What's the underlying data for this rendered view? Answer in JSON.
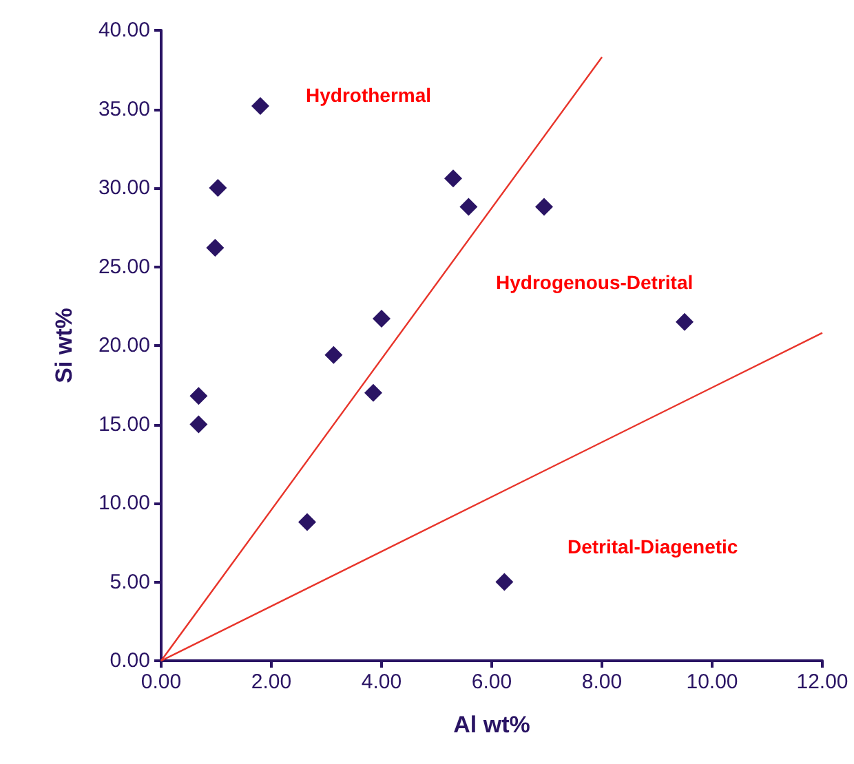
{
  "chart_data": {
    "type": "scatter",
    "xlabel": "Al wt%",
    "ylabel": "Si wt%",
    "grid": false,
    "xlim": [
      0,
      12
    ],
    "ylim": [
      0,
      40
    ],
    "xticks": [
      {
        "value": 0,
        "label": "0.00"
      },
      {
        "value": 2,
        "label": "2.00"
      },
      {
        "value": 4,
        "label": "4.00"
      },
      {
        "value": 6,
        "label": "6.00"
      },
      {
        "value": 8,
        "label": "8.00"
      },
      {
        "value": 10,
        "label": "10.00"
      },
      {
        "value": 12,
        "label": "12.00"
      }
    ],
    "yticks": [
      {
        "value": 0,
        "label": "0.00"
      },
      {
        "value": 5,
        "label": "5.00"
      },
      {
        "value": 10,
        "label": "10.00"
      },
      {
        "value": 15,
        "label": "15.00"
      },
      {
        "value": 20,
        "label": "20.00"
      },
      {
        "value": 25,
        "label": "25.00"
      },
      {
        "value": 30,
        "label": "30.00"
      },
      {
        "value": 35,
        "label": "35.00"
      },
      {
        "value": 40,
        "label": "40.00"
      }
    ],
    "annotations": [
      "Hydrothermal",
      "Hydrogenous-Detrital",
      "Detrital-Diagenetic"
    ],
    "series": [
      {
        "marker": "diamond",
        "color": "#2a1464",
        "x": [
          1.8,
          1.03,
          0.98,
          0.68,
          0.68,
          5.3,
          5.58,
          6.95,
          4.0,
          3.13,
          3.85,
          2.65,
          6.23,
          9.5
        ],
        "values": [
          35.2,
          30.0,
          26.2,
          16.8,
          15.0,
          30.6,
          28.8,
          28.8,
          21.7,
          19.4,
          17.0,
          8.8,
          5.0,
          21.5
        ]
      },
      {
        "type": "line",
        "color": "#e8342a",
        "x": [
          0,
          8
        ],
        "values": [
          0,
          38.3
        ]
      },
      {
        "type": "line",
        "color": "#e8342a",
        "x": [
          0,
          12
        ],
        "values": [
          0,
          20.8
        ]
      }
    ]
  }
}
